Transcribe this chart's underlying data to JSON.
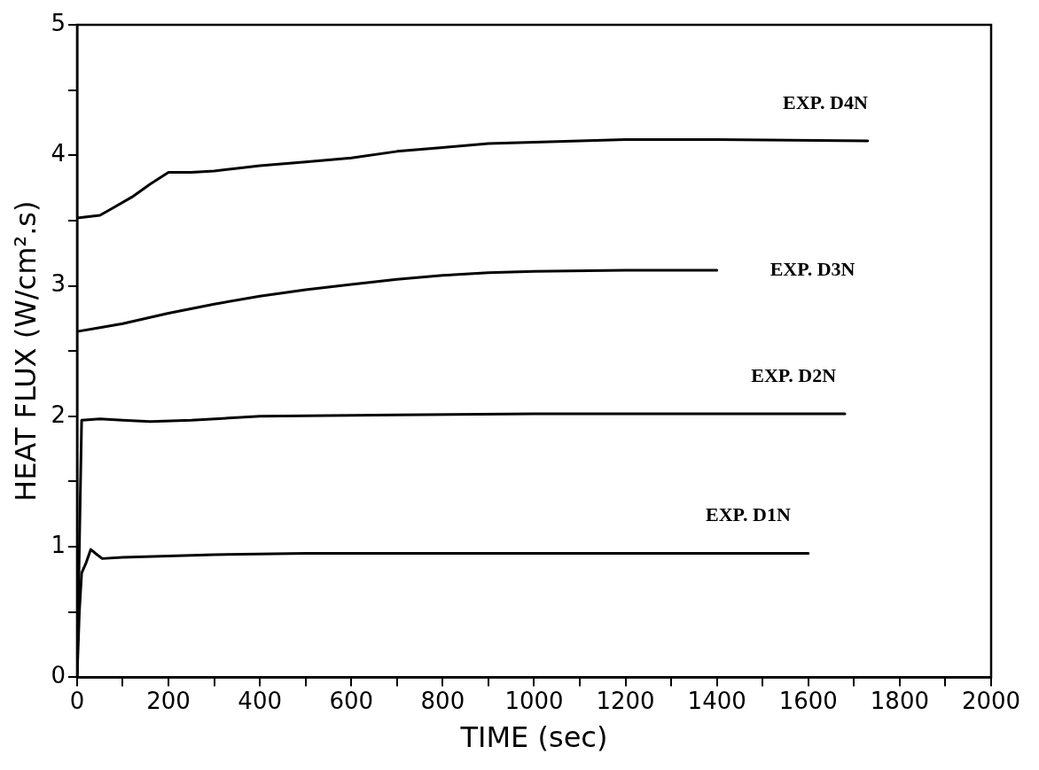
{
  "chart_data": {
    "type": "line",
    "xlabel": "TIME (sec)",
    "ylabel": "HEAT FLUX (W/cm².s)",
    "xlim": [
      0,
      2000
    ],
    "ylim": [
      0,
      5
    ],
    "xticks": [
      0,
      {
        "value": 100,
        "label": null
      },
      200,
      {
        "value": 300,
        "label": null
      },
      400,
      {
        "value": 500,
        "label": null
      },
      600,
      {
        "value": 700,
        "label": null
      },
      800,
      {
        "value": 900,
        "label": null
      },
      1000,
      {
        "value": 1100,
        "label": null
      },
      1200,
      {
        "value": 1300,
        "label": null
      },
      1400,
      {
        "value": 1500,
        "label": null
      },
      1600,
      {
        "value": 1700,
        "label": null
      },
      1800,
      {
        "value": 1900,
        "label": null
      },
      2000
    ],
    "yticks": [
      0,
      {
        "value": 0.5,
        "label": null
      },
      1,
      {
        "value": 1.5,
        "label": null
      },
      2,
      {
        "value": 2.5,
        "label": null
      },
      3,
      {
        "value": 3.5,
        "label": null
      },
      4,
      {
        "value": 4.5,
        "label": null
      },
      5
    ],
    "grid": false,
    "legend": false,
    "marker": "none",
    "line_style": "solid",
    "series": [
      {
        "name": "EXP. D4N",
        "color": "#000000",
        "x": [
          0,
          25,
          50,
          80,
          120,
          160,
          200,
          250,
          300,
          350,
          400,
          500,
          600,
          700,
          800,
          900,
          1000,
          1200,
          1400,
          1730
        ],
        "values": [
          3.52,
          3.53,
          3.54,
          3.6,
          3.68,
          3.78,
          3.87,
          3.87,
          3.88,
          3.9,
          3.92,
          3.95,
          3.98,
          4.03,
          4.06,
          4.09,
          4.1,
          4.12,
          4.12,
          4.11
        ]
      },
      {
        "name": "EXP. D3N",
        "color": "#000000",
        "x": [
          0,
          50,
          100,
          200,
          300,
          400,
          500,
          600,
          700,
          800,
          900,
          1000,
          1200,
          1400
        ],
        "values": [
          2.65,
          2.68,
          2.71,
          2.79,
          2.86,
          2.92,
          2.97,
          3.01,
          3.05,
          3.08,
          3.1,
          3.11,
          3.12,
          3.12
        ]
      },
      {
        "name": "EXP. D2N",
        "color": "#000000",
        "x": [
          0,
          5,
          10,
          50,
          100,
          160,
          250,
          400,
          700,
          1000,
          1680
        ],
        "values": [
          0,
          1.0,
          1.97,
          1.98,
          1.97,
          1.96,
          1.97,
          2.0,
          2.01,
          2.02,
          2.02
        ]
      },
      {
        "name": "EXP. D1N",
        "color": "#000000",
        "x": [
          0,
          5,
          10,
          20,
          30,
          40,
          55,
          100,
          300,
          500,
          1000,
          1600
        ],
        "values": [
          0,
          0.5,
          0.8,
          0.88,
          0.98,
          0.95,
          0.91,
          0.92,
          0.94,
          0.95,
          0.95,
          0.95
        ]
      }
    ]
  }
}
